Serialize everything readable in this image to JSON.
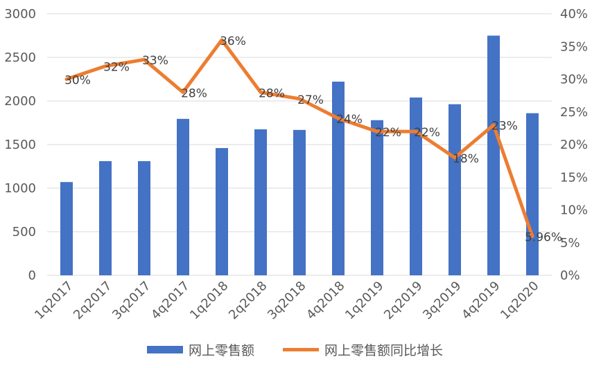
{
  "chart_data": {
    "type": "bar",
    "categories": [
      "1q2017",
      "2q2017",
      "3q2017",
      "4q2017",
      "1q2018",
      "2q2018",
      "3q2018",
      "4q2018",
      "1q2019",
      "2q2019",
      "3q2019",
      "4q2019",
      "1q2020"
    ],
    "series": [
      {
        "name": "网上零售额",
        "type": "bar",
        "axis": "left",
        "color": "#4472c4",
        "values": [
          1070,
          1310,
          1310,
          1795,
          1460,
          1675,
          1668,
          2222,
          1780,
          2040,
          1963,
          2750,
          1860
        ]
      },
      {
        "name": "网上零售额同比增长",
        "type": "line",
        "axis": "right",
        "color": "#ed7d31",
        "values": [
          30,
          32,
          33,
          28,
          36,
          28,
          27,
          24,
          22,
          22,
          18,
          23,
          5.96
        ],
        "data_labels": [
          "30%",
          "32%",
          "33%",
          "28%",
          "36%",
          "28%",
          "27%",
          "24%",
          "22%",
          "22%",
          "18%",
          "23%",
          "5.96%"
        ]
      }
    ],
    "y_left": {
      "ylim": [
        0,
        3000
      ],
      "ticks": [
        "0",
        "500",
        "1000",
        "1500",
        "2000",
        "2500",
        "3000"
      ]
    },
    "y_right": {
      "ylim": [
        0,
        40
      ],
      "ticks": [
        "0%",
        "5%",
        "10%",
        "15%",
        "20%",
        "25%",
        "30%",
        "35%",
        "40%"
      ]
    },
    "grid": true,
    "legend_position": "bottom"
  }
}
